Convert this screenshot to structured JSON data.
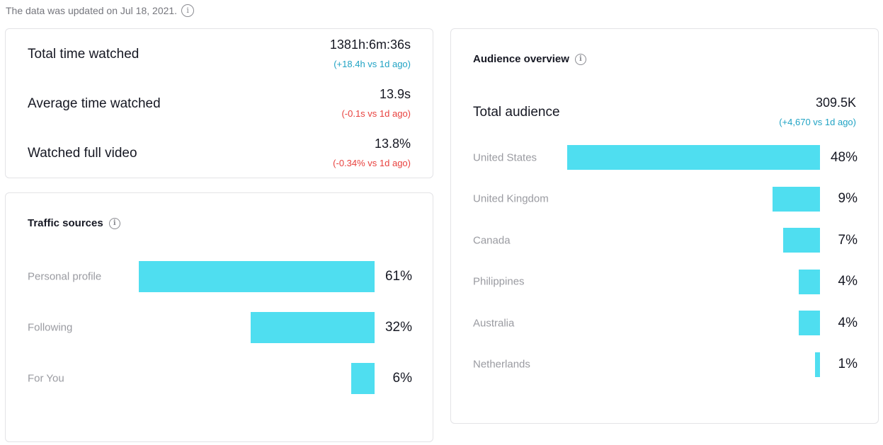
{
  "header": {
    "updated_text": "The data was updated on Jul 18, 2021."
  },
  "stats": [
    {
      "label": "Total time watched",
      "value": "1381h:6m:36s",
      "delta": "(+18.4h vs 1d ago)",
      "trend": "up"
    },
    {
      "label": "Average time watched",
      "value": "13.9s",
      "delta": "(-0.1s vs 1d ago)",
      "trend": "down"
    },
    {
      "label": "Watched full video",
      "value": "13.8%",
      "delta": "(-0.34% vs 1d ago)",
      "trend": "down"
    }
  ],
  "traffic": {
    "title": "Traffic sources",
    "items": [
      {
        "label": "Personal profile",
        "pct_text": "61%",
        "pct": 61
      },
      {
        "label": "Following",
        "pct_text": "32%",
        "pct": 32
      },
      {
        "label": "For You",
        "pct_text": "6%",
        "pct": 6
      }
    ]
  },
  "audience": {
    "title": "Audience overview",
    "total_label": "Total audience",
    "total_value": "309.5K",
    "total_delta": "(+4,670 vs 1d ago)",
    "items": [
      {
        "label": "United States",
        "pct_text": "48%",
        "pct": 48
      },
      {
        "label": "United Kingdom",
        "pct_text": "9%",
        "pct": 9
      },
      {
        "label": "Canada",
        "pct_text": "7%",
        "pct": 7
      },
      {
        "label": "Philippines",
        "pct_text": "4%",
        "pct": 4
      },
      {
        "label": "Australia",
        "pct_text": "4%",
        "pct": 4
      },
      {
        "label": "Netherlands",
        "pct_text": "1%",
        "pct": 1
      }
    ]
  },
  "colors": {
    "bar": "#4fdef0",
    "positive": "#20a3c4",
    "negative": "#e8413e"
  }
}
